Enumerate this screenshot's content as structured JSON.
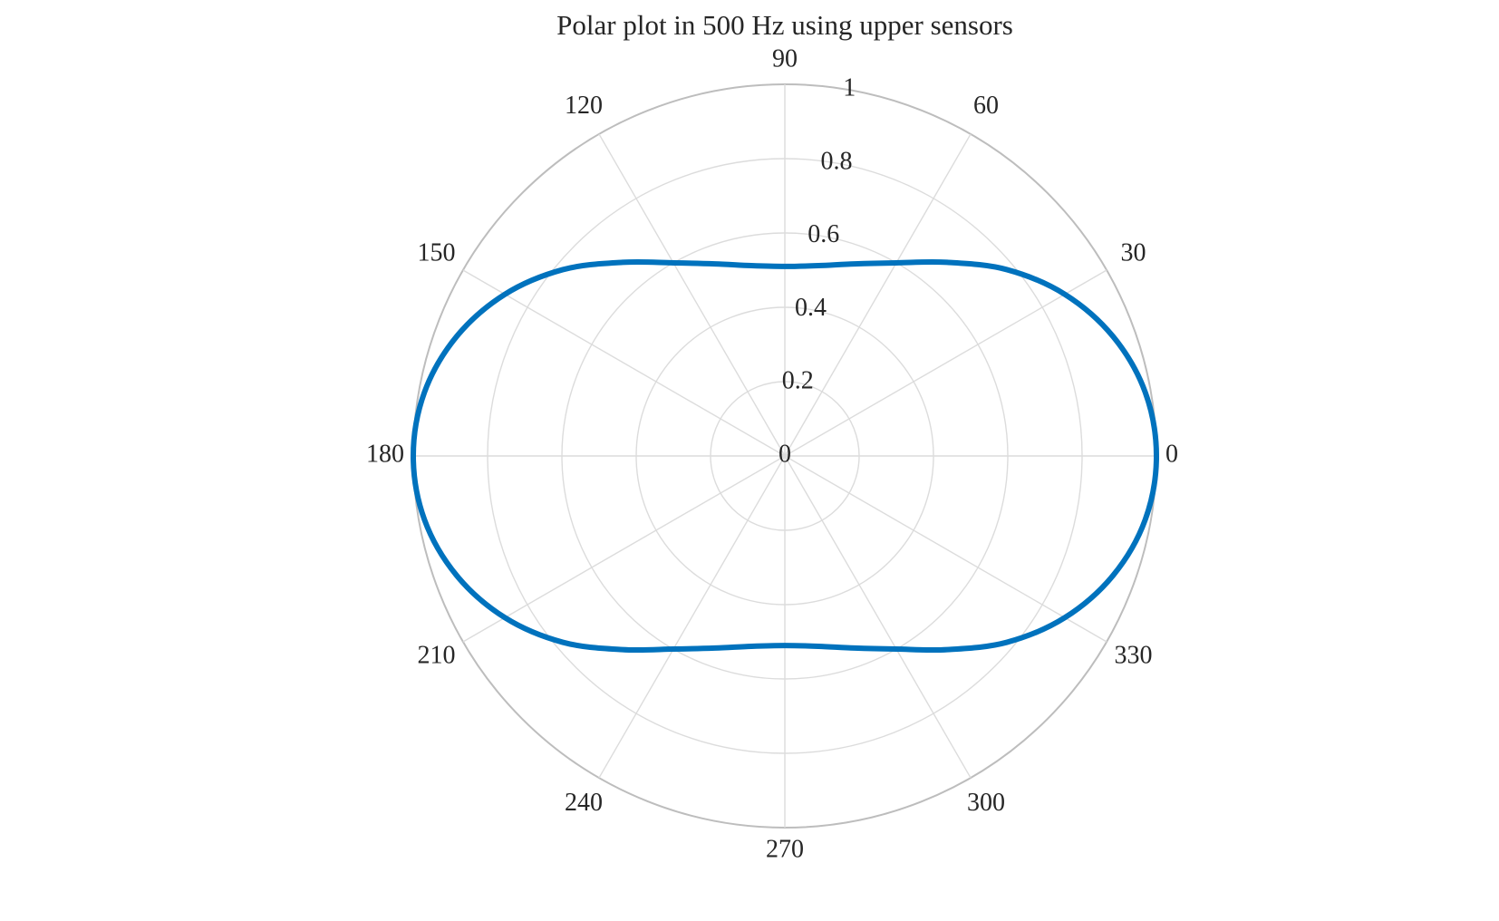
{
  "chart_data": {
    "type": "polar-line",
    "title": "Polar plot in 500 Hz using upper sensors",
    "theta_unit": "degrees",
    "theta_ticks": [
      0,
      30,
      60,
      90,
      120,
      150,
      180,
      210,
      240,
      270,
      300,
      330
    ],
    "theta_tick_labels": [
      "0",
      "30",
      "60",
      "90",
      "120",
      "150",
      "180",
      "210",
      "240",
      "270",
      "300",
      "330"
    ],
    "r_lim": [
      0,
      1
    ],
    "r_ticks": [
      0,
      0.2,
      0.4,
      0.6,
      0.8,
      1
    ],
    "r_tick_labels": [
      "0",
      "0.2",
      "0.4",
      "0.6",
      "0.8",
      "1"
    ],
    "grid": true,
    "series": [
      {
        "theta": [
          0,
          10,
          20,
          30,
          40,
          50,
          60,
          70,
          80,
          90,
          100,
          110,
          120,
          130,
          140,
          150,
          160,
          170,
          180,
          190,
          200,
          210,
          220,
          230,
          240,
          250,
          260,
          270,
          280,
          290,
          300,
          310,
          320,
          330,
          340,
          350
        ],
        "r": [
          1.0,
          0.985,
          0.94,
          0.87,
          0.78,
          0.68,
          0.6,
          0.55,
          0.52,
          0.51,
          0.52,
          0.55,
          0.6,
          0.68,
          0.78,
          0.87,
          0.94,
          0.985,
          1.0,
          0.985,
          0.94,
          0.87,
          0.78,
          0.68,
          0.6,
          0.55,
          0.52,
          0.51,
          0.52,
          0.55,
          0.6,
          0.68,
          0.78,
          0.87,
          0.94,
          0.985
        ],
        "color": "#0072BD"
      }
    ],
    "colors": {
      "grid": "#dcdcdc",
      "outer_ring": "#bdbdbd",
      "text": "#262626"
    }
  }
}
